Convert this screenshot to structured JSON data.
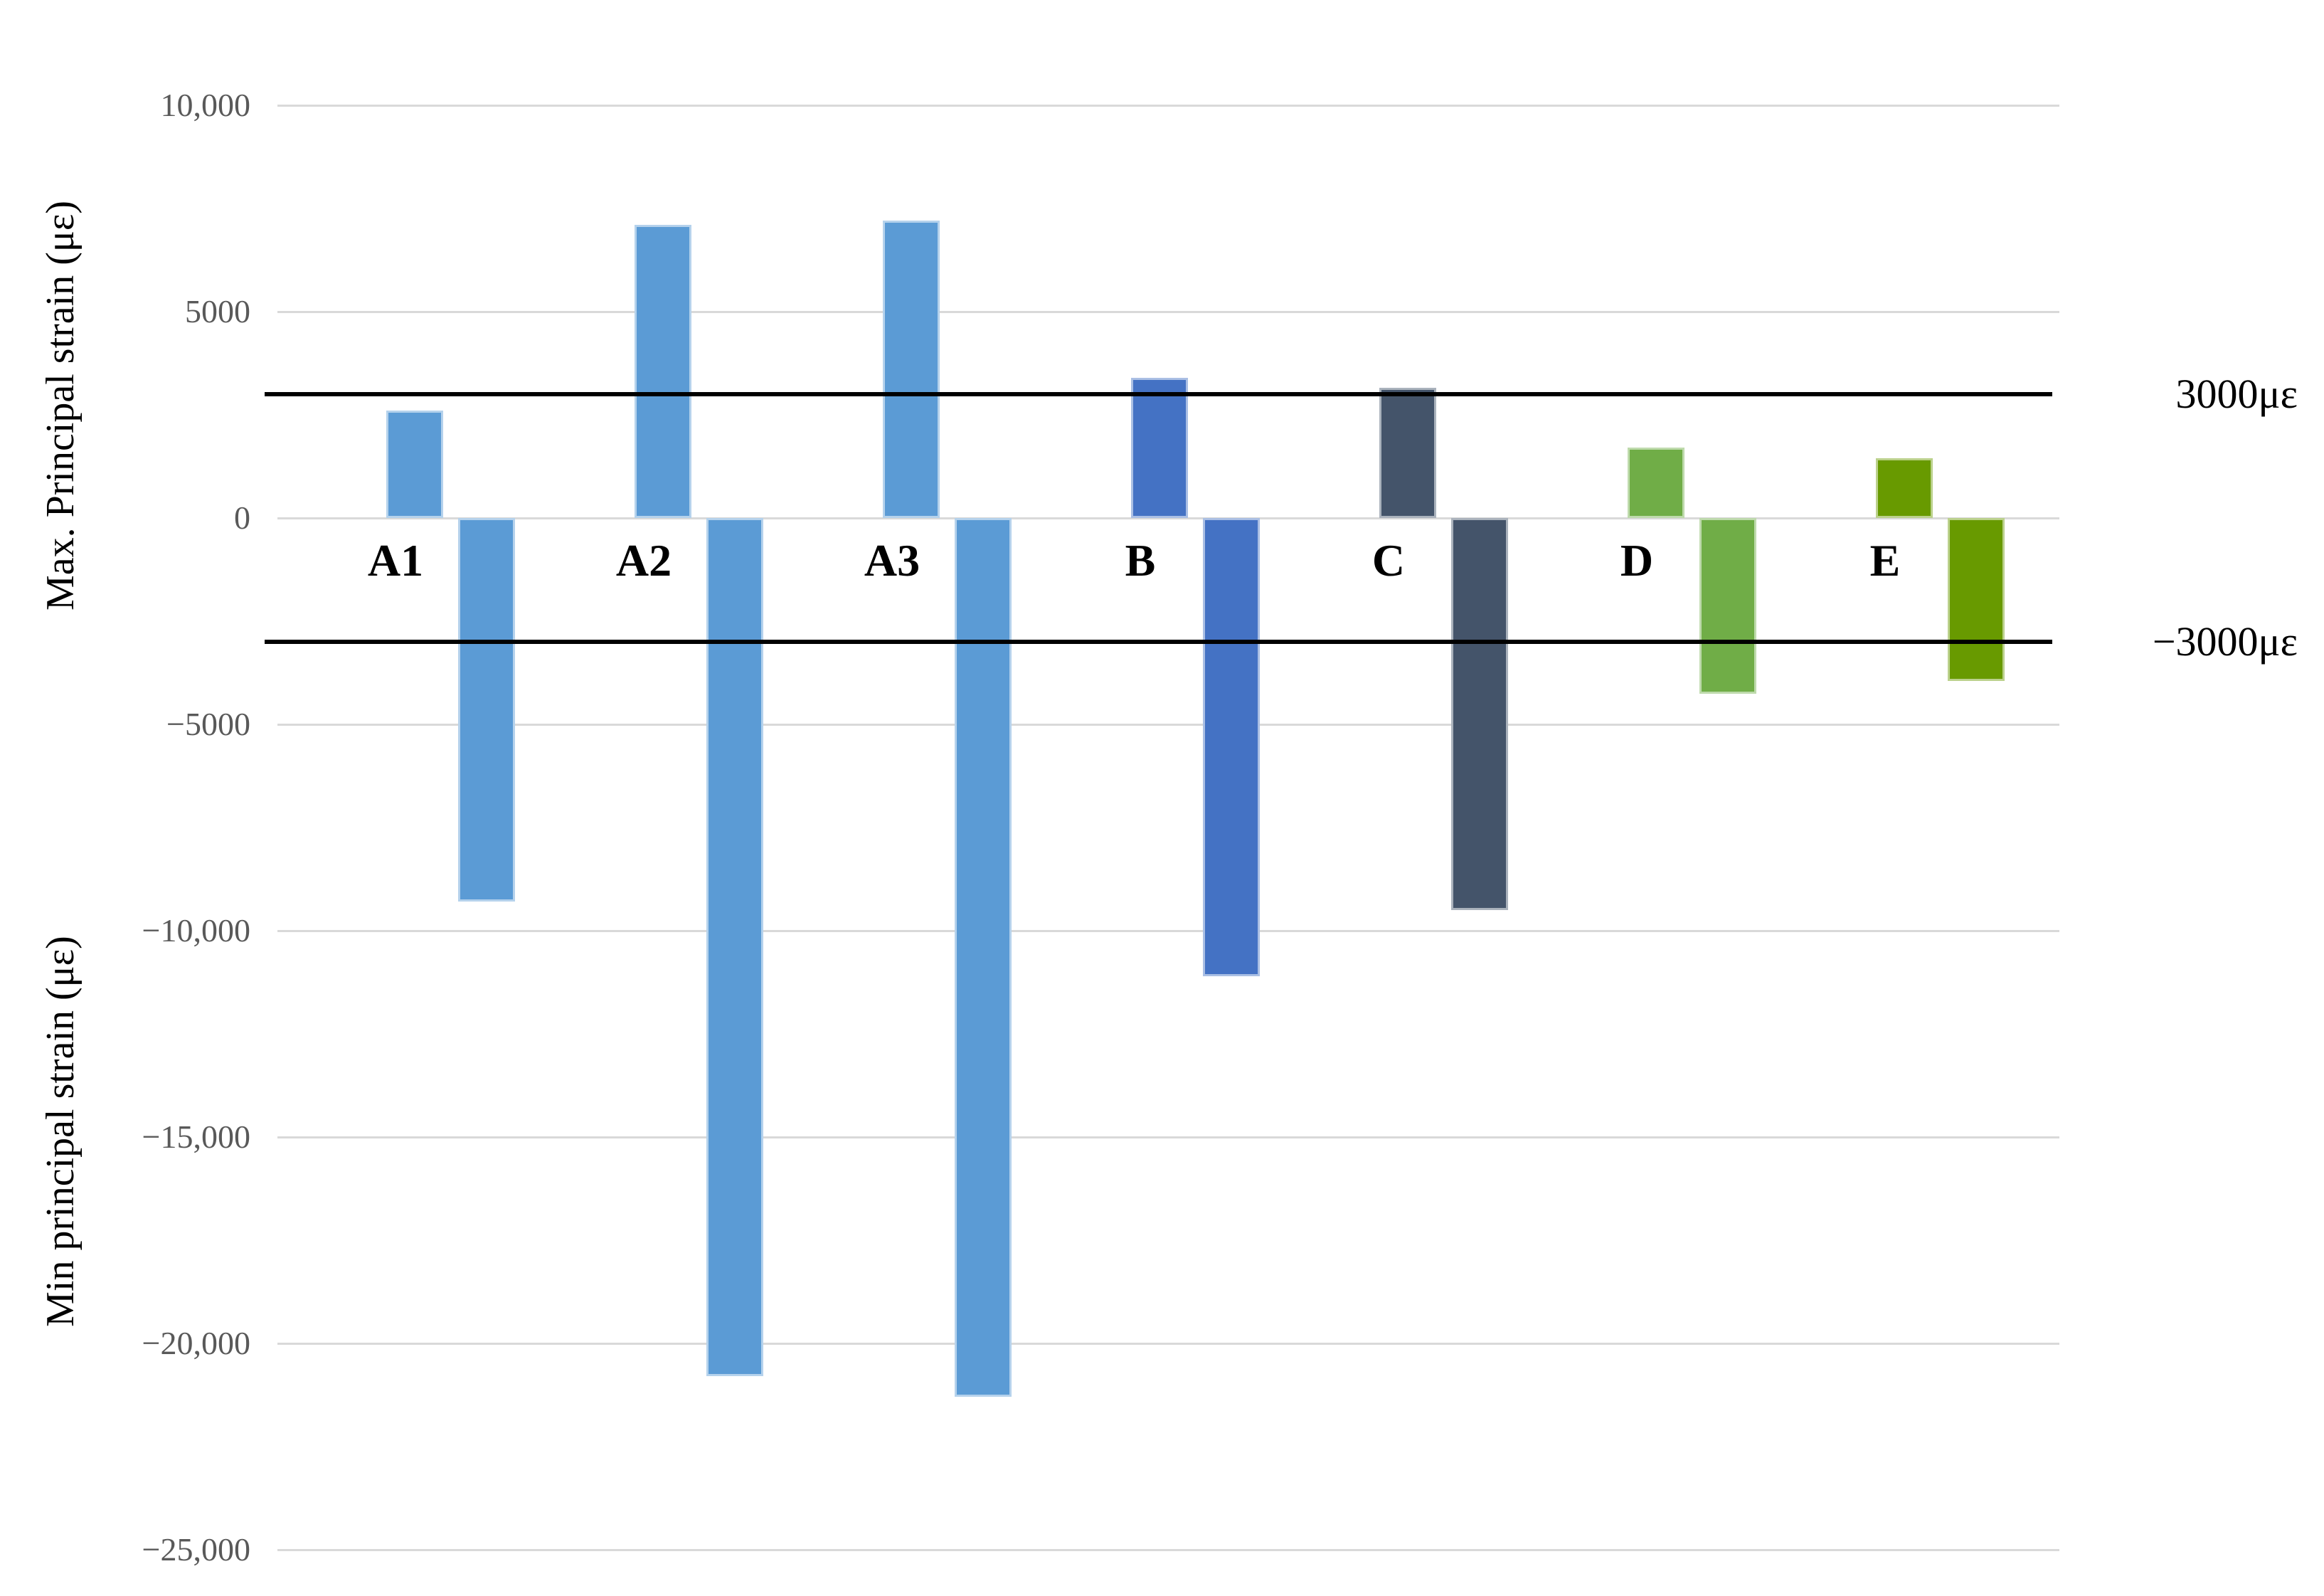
{
  "chart_data": {
    "type": "bar",
    "categories": [
      "A1",
      "A2",
      "A3",
      "B",
      "C",
      "D",
      "E"
    ],
    "series": [
      {
        "name": "Max principal strain",
        "values": [
          2600,
          7100,
          7200,
          3400,
          3150,
          1700,
          1450
        ]
      },
      {
        "name": "Min principal strain",
        "values": [
          -9300,
          -20800,
          -21300,
          -11100,
          -9500,
          -4250,
          -3950
        ]
      }
    ],
    "category_colors": [
      "#5B9BD5",
      "#5B9BD5",
      "#5B9BD5",
      "#4472C4",
      "#44546A",
      "#70AD47",
      "#689A00"
    ],
    "title": "",
    "xlabel": "",
    "ylabel_top": "Max. Principal strain (με)",
    "ylabel_bottom": "Min principal strain (με)",
    "ylim": [
      -25000,
      11700
    ],
    "grid": true,
    "legend": false,
    "y_ticks": [
      {
        "value": 10000,
        "label": "10,000"
      },
      {
        "value": 5000,
        "label": "5000"
      },
      {
        "value": 0,
        "label": "0"
      },
      {
        "value": -5000,
        "label": "−5000"
      },
      {
        "value": -10000,
        "label": "−10,000"
      },
      {
        "value": -15000,
        "label": "−15,000"
      },
      {
        "value": -20000,
        "label": "−20,000"
      },
      {
        "value": -25000,
        "label": "−25,000"
      }
    ],
    "reference_lines": [
      {
        "value": 3000,
        "label": "3000με"
      },
      {
        "value": -3000,
        "label": "−3000με"
      }
    ],
    "colors": {
      "gridline": "#D9D9D9",
      "reference_line": "#000000",
      "tick_text": "#595959",
      "label_text": "#000000"
    }
  }
}
